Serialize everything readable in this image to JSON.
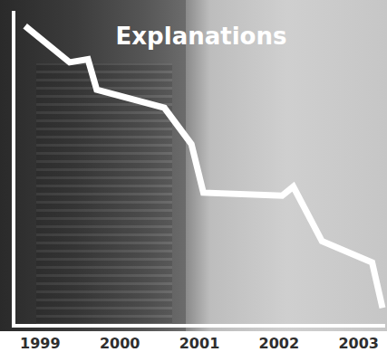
{
  "chart_data": {
    "type": "line",
    "title": "Explanations",
    "x": [
      1998.81,
      1999.37,
      1999.6,
      1999.71,
      2000.56,
      2000.9,
      2001.05,
      2002.04,
      2002.18,
      2002.54,
      2003.17,
      2003.3
    ],
    "values": [
      98,
      86,
      87,
      77,
      71,
      59,
      43,
      42,
      45,
      27,
      20,
      5
    ],
    "color": "#ffffff",
    "line_style": "solid",
    "xlim": [
      1998.7,
      2003.3
    ],
    "xticks": [
      1999,
      2000,
      2001,
      2002,
      2003
    ],
    "ylim": [
      0,
      100
    ],
    "tick_labels": "x",
    "grid": false
  }
}
